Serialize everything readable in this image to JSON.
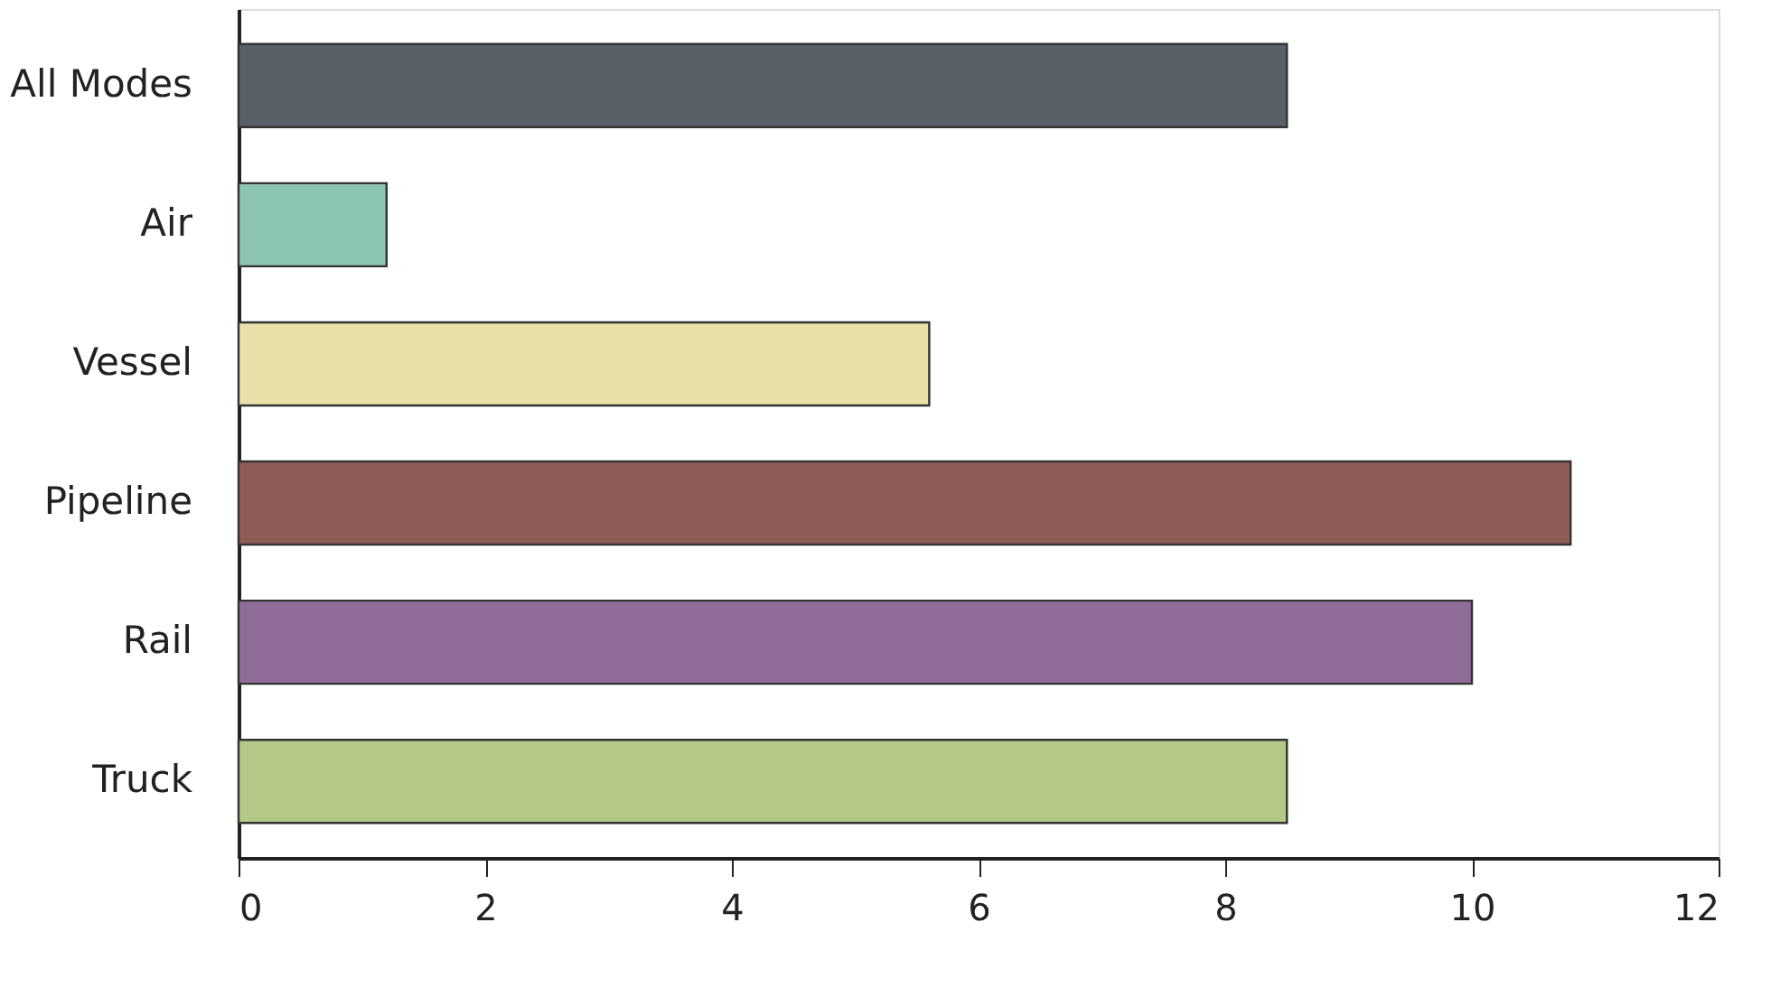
{
  "chart_data": {
    "type": "bar",
    "orientation": "horizontal",
    "categories": [
      "All Modes",
      "Air",
      "Vessel",
      "Pipeline",
      "Rail",
      "Truck"
    ],
    "values": [
      8.5,
      1.2,
      5.6,
      10.8,
      10.0,
      8.5
    ],
    "colors": [
      "#5a6068",
      "#8cc4b4",
      "#e8e0a8",
      "#905c58",
      "#906c98",
      "#b4c888"
    ],
    "xlim": [
      0,
      12
    ],
    "xticks": [
      0,
      2,
      4,
      6,
      8,
      10,
      12
    ],
    "grid": false
  }
}
